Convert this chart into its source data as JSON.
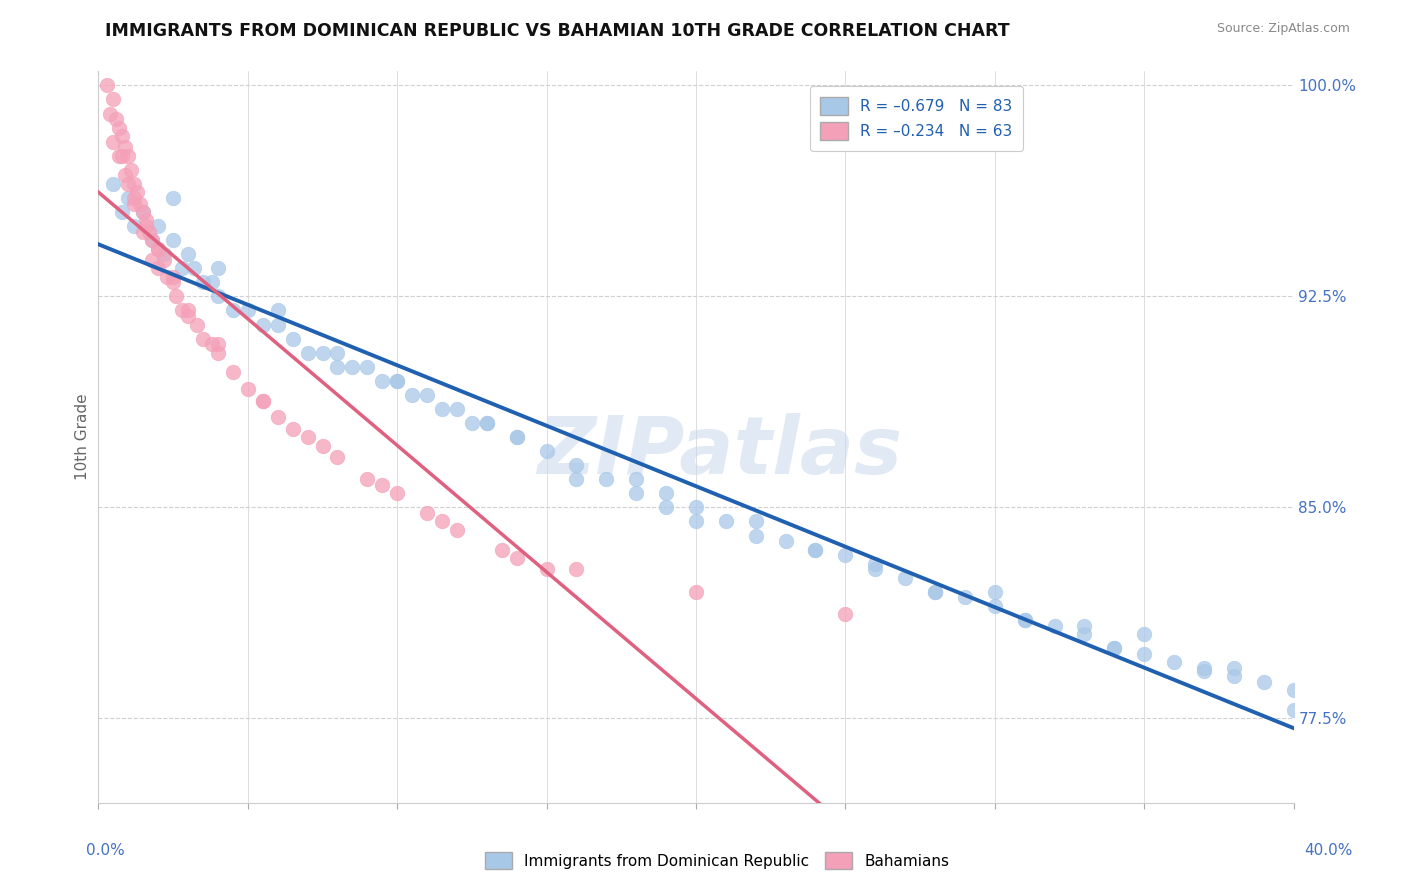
{
  "title": "IMMIGRANTS FROM DOMINICAN REPUBLIC VS BAHAMIAN 10TH GRADE CORRELATION CHART",
  "source": "Source: ZipAtlas.com",
  "ylabel": "10th Grade",
  "ylabel_right_ticks": [
    "100.0%",
    "92.5%",
    "85.0%",
    "77.5%"
  ],
  "legend_blue_label": "R = –0.679   N = 83",
  "legend_pink_label": "R = –0.234   N = 63",
  "legend_bottom_blue": "Immigrants from Dominican Republic",
  "legend_bottom_pink": "Bahamians",
  "blue_color": "#a8c8e8",
  "pink_color": "#f4a0b8",
  "blue_line_color": "#2060b0",
  "pink_line_color": "#e06080",
  "dashed_line_color": "#e8a0b8",
  "xmin": 0.0,
  "xmax": 0.4,
  "ymin": 0.745,
  "ymax": 1.005,
  "blue_intercept": 0.935,
  "blue_slope": -0.4,
  "pink_intercept": 0.965,
  "pink_slope": -0.5,
  "blue_points_x": [
    0.005,
    0.008,
    0.01,
    0.012,
    0.015,
    0.018,
    0.02,
    0.022,
    0.025,
    0.028,
    0.03,
    0.032,
    0.035,
    0.038,
    0.04,
    0.045,
    0.05,
    0.055,
    0.06,
    0.065,
    0.07,
    0.075,
    0.08,
    0.085,
    0.09,
    0.095,
    0.1,
    0.105,
    0.11,
    0.115,
    0.12,
    0.125,
    0.13,
    0.14,
    0.15,
    0.16,
    0.17,
    0.18,
    0.19,
    0.2,
    0.21,
    0.22,
    0.23,
    0.24,
    0.25,
    0.26,
    0.27,
    0.28,
    0.29,
    0.3,
    0.31,
    0.32,
    0.33,
    0.34,
    0.35,
    0.36,
    0.37,
    0.38,
    0.39,
    0.4,
    0.025,
    0.04,
    0.06,
    0.08,
    0.1,
    0.13,
    0.16,
    0.2,
    0.24,
    0.28,
    0.31,
    0.34,
    0.37,
    0.4,
    0.18,
    0.22,
    0.3,
    0.35,
    0.38,
    0.14,
    0.19,
    0.26,
    0.33
  ],
  "blue_points_y": [
    0.965,
    0.955,
    0.96,
    0.95,
    0.955,
    0.945,
    0.95,
    0.94,
    0.945,
    0.935,
    0.94,
    0.935,
    0.93,
    0.93,
    0.925,
    0.92,
    0.92,
    0.915,
    0.915,
    0.91,
    0.905,
    0.905,
    0.905,
    0.9,
    0.9,
    0.895,
    0.895,
    0.89,
    0.89,
    0.885,
    0.885,
    0.88,
    0.88,
    0.875,
    0.87,
    0.865,
    0.86,
    0.855,
    0.85,
    0.845,
    0.845,
    0.84,
    0.838,
    0.835,
    0.833,
    0.83,
    0.825,
    0.82,
    0.818,
    0.815,
    0.81,
    0.808,
    0.805,
    0.8,
    0.798,
    0.795,
    0.792,
    0.79,
    0.788,
    0.785,
    0.96,
    0.935,
    0.92,
    0.9,
    0.895,
    0.88,
    0.86,
    0.85,
    0.835,
    0.82,
    0.81,
    0.8,
    0.793,
    0.778,
    0.86,
    0.845,
    0.82,
    0.805,
    0.793,
    0.875,
    0.855,
    0.828,
    0.808
  ],
  "pink_points_x": [
    0.003,
    0.004,
    0.005,
    0.005,
    0.006,
    0.007,
    0.007,
    0.008,
    0.009,
    0.009,
    0.01,
    0.01,
    0.011,
    0.012,
    0.012,
    0.013,
    0.014,
    0.015,
    0.015,
    0.016,
    0.017,
    0.018,
    0.018,
    0.02,
    0.02,
    0.022,
    0.023,
    0.025,
    0.026,
    0.028,
    0.03,
    0.033,
    0.035,
    0.038,
    0.04,
    0.045,
    0.05,
    0.055,
    0.06,
    0.065,
    0.07,
    0.08,
    0.09,
    0.1,
    0.11,
    0.12,
    0.135,
    0.15,
    0.008,
    0.012,
    0.016,
    0.02,
    0.025,
    0.03,
    0.04,
    0.055,
    0.075,
    0.095,
    0.115,
    0.14,
    0.16,
    0.2,
    0.25
  ],
  "pink_points_y": [
    1.0,
    0.99,
    0.995,
    0.98,
    0.988,
    0.985,
    0.975,
    0.982,
    0.978,
    0.968,
    0.975,
    0.965,
    0.97,
    0.965,
    0.958,
    0.962,
    0.958,
    0.955,
    0.948,
    0.952,
    0.948,
    0.945,
    0.938,
    0.942,
    0.935,
    0.938,
    0.932,
    0.93,
    0.925,
    0.92,
    0.918,
    0.915,
    0.91,
    0.908,
    0.905,
    0.898,
    0.892,
    0.888,
    0.882,
    0.878,
    0.875,
    0.868,
    0.86,
    0.855,
    0.848,
    0.842,
    0.835,
    0.828,
    0.975,
    0.96,
    0.95,
    0.942,
    0.932,
    0.92,
    0.908,
    0.888,
    0.872,
    0.858,
    0.845,
    0.832,
    0.828,
    0.82,
    0.812
  ],
  "watermark": "ZIPatlas",
  "grid_color": "#d0d0d0",
  "background_color": "#ffffff"
}
